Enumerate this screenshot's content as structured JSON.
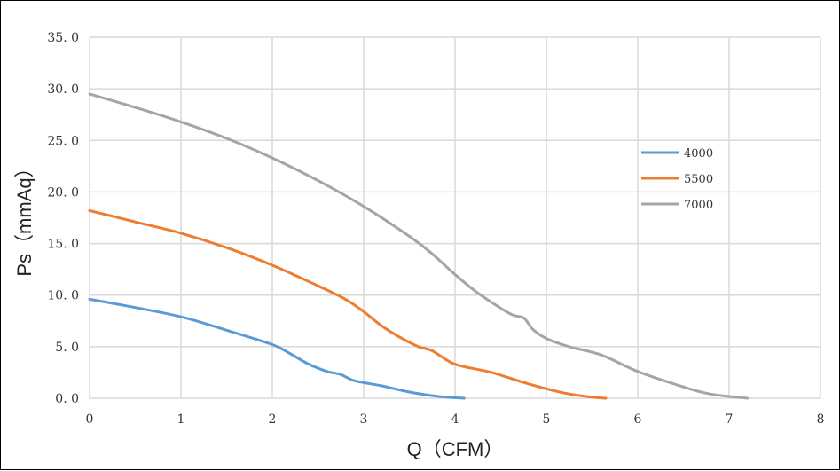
{
  "chart_data": {
    "type": "line",
    "title": "",
    "xlabel": "Q（CFM）",
    "ylabel": "Ps（mmAq）",
    "xlim": [
      0,
      8
    ],
    "ylim": [
      0,
      35
    ],
    "x_ticks": [
      "0",
      "1",
      "2",
      "3",
      "4",
      "5",
      "6",
      "7",
      "8"
    ],
    "y_ticks": [
      "0. 0",
      "5. 0",
      "10. 0",
      "15. 0",
      "20. 0",
      "25. 0",
      "30. 0",
      "35. 0"
    ],
    "grid": true,
    "legend_position": "right",
    "series": [
      {
        "name": "4000",
        "color": "#5b9bd5",
        "x": [
          0,
          0.5,
          1,
          1.5,
          2,
          2.2,
          2.4,
          2.6,
          2.75,
          2.9,
          3.2,
          3.5,
          3.8,
          4.0,
          4.1
        ],
        "y": [
          9.6,
          8.8,
          7.9,
          6.6,
          5.2,
          4.3,
          3.3,
          2.6,
          2.3,
          1.7,
          1.2,
          0.6,
          0.2,
          0.05,
          0
        ]
      },
      {
        "name": "5500",
        "color": "#ed7d31",
        "x": [
          0,
          0.5,
          1,
          1.5,
          2,
          2.5,
          2.8,
          3,
          3.2,
          3.4,
          3.6,
          3.75,
          4,
          4.4,
          4.8,
          5.2,
          5.5,
          5.65
        ],
        "y": [
          18.2,
          17.1,
          16.0,
          14.6,
          12.9,
          10.9,
          9.6,
          8.4,
          7.0,
          5.9,
          5.0,
          4.6,
          3.3,
          2.5,
          1.4,
          0.5,
          0.1,
          0
        ]
      },
      {
        "name": "7000",
        "color": "#a5a5a5",
        "x": [
          0,
          0.5,
          1,
          1.5,
          2,
          2.5,
          3,
          3.5,
          3.75,
          4,
          4.25,
          4.6,
          4.75,
          4.85,
          5,
          5.25,
          5.6,
          6,
          6.5,
          6.8,
          7.2
        ],
        "y": [
          29.5,
          28.2,
          26.8,
          25.2,
          23.3,
          21.1,
          18.6,
          15.7,
          14.0,
          12.0,
          10.2,
          8.2,
          7.8,
          6.7,
          5.8,
          5.0,
          4.2,
          2.6,
          1.1,
          0.4,
          0
        ]
      }
    ]
  }
}
